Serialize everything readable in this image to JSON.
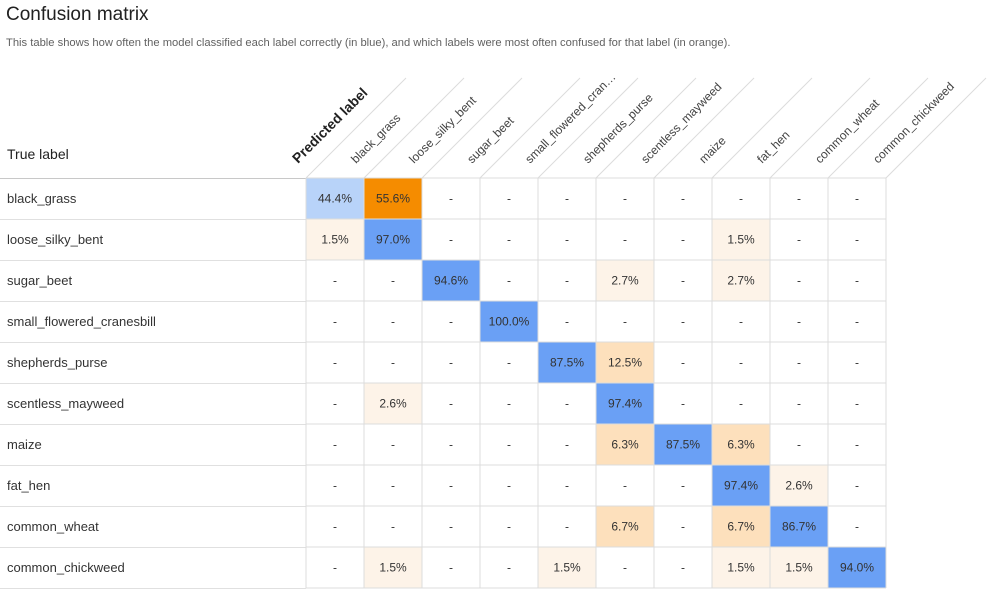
{
  "page": {
    "title": "Confusion matrix",
    "subtitle": "This table shows how often the model classified each label correctly (in blue), and which labels were most often confused for that label (in orange).",
    "true_label_header": "True label",
    "predicted_label_header": "Predicted label",
    "empty_cell": "-"
  },
  "colors": {
    "correct_strong": "#6aa0f5",
    "correct_light": "#b8d3f9",
    "confused_strong": "#f58c00",
    "confused_mid": "#fde0bc",
    "confused_light": "#fdf3e8",
    "grid": "#dcdcdc"
  },
  "chart_data": {
    "type": "heatmap",
    "title": "Confusion matrix",
    "xlabel": "Predicted label",
    "ylabel": "True label",
    "x_labels": [
      "black_grass",
      "loose_silky_bent",
      "sugar_beet",
      "small_flowered_cran…",
      "shepherds_purse",
      "scentless_mayweed",
      "maize",
      "fat_hen",
      "common_wheat",
      "common_chickweed"
    ],
    "y_labels": [
      "black_grass",
      "loose_silky_bent",
      "sugar_beet",
      "small_flowered_cranesbill",
      "shepherds_purse",
      "scentless_mayweed",
      "maize",
      "fat_hen",
      "common_wheat",
      "common_chickweed"
    ],
    "unit": "%",
    "values": [
      [
        44.4,
        55.6,
        null,
        null,
        null,
        null,
        null,
        null,
        null,
        null
      ],
      [
        1.5,
        97.0,
        null,
        null,
        null,
        null,
        null,
        1.5,
        null,
        null
      ],
      [
        null,
        null,
        94.6,
        null,
        null,
        2.7,
        null,
        2.7,
        null,
        null
      ],
      [
        null,
        null,
        null,
        100.0,
        null,
        null,
        null,
        null,
        null,
        null
      ],
      [
        null,
        null,
        null,
        null,
        87.5,
        12.5,
        null,
        null,
        null,
        null
      ],
      [
        null,
        2.6,
        null,
        null,
        null,
        97.4,
        null,
        null,
        null,
        null
      ],
      [
        null,
        null,
        null,
        null,
        null,
        6.3,
        87.5,
        6.3,
        null,
        null
      ],
      [
        null,
        null,
        null,
        null,
        null,
        null,
        null,
        97.4,
        2.6,
        null
      ],
      [
        null,
        null,
        null,
        null,
        null,
        6.7,
        null,
        6.7,
        86.7,
        null
      ],
      [
        null,
        1.5,
        null,
        null,
        1.5,
        null,
        null,
        1.5,
        1.5,
        94.0
      ]
    ]
  }
}
